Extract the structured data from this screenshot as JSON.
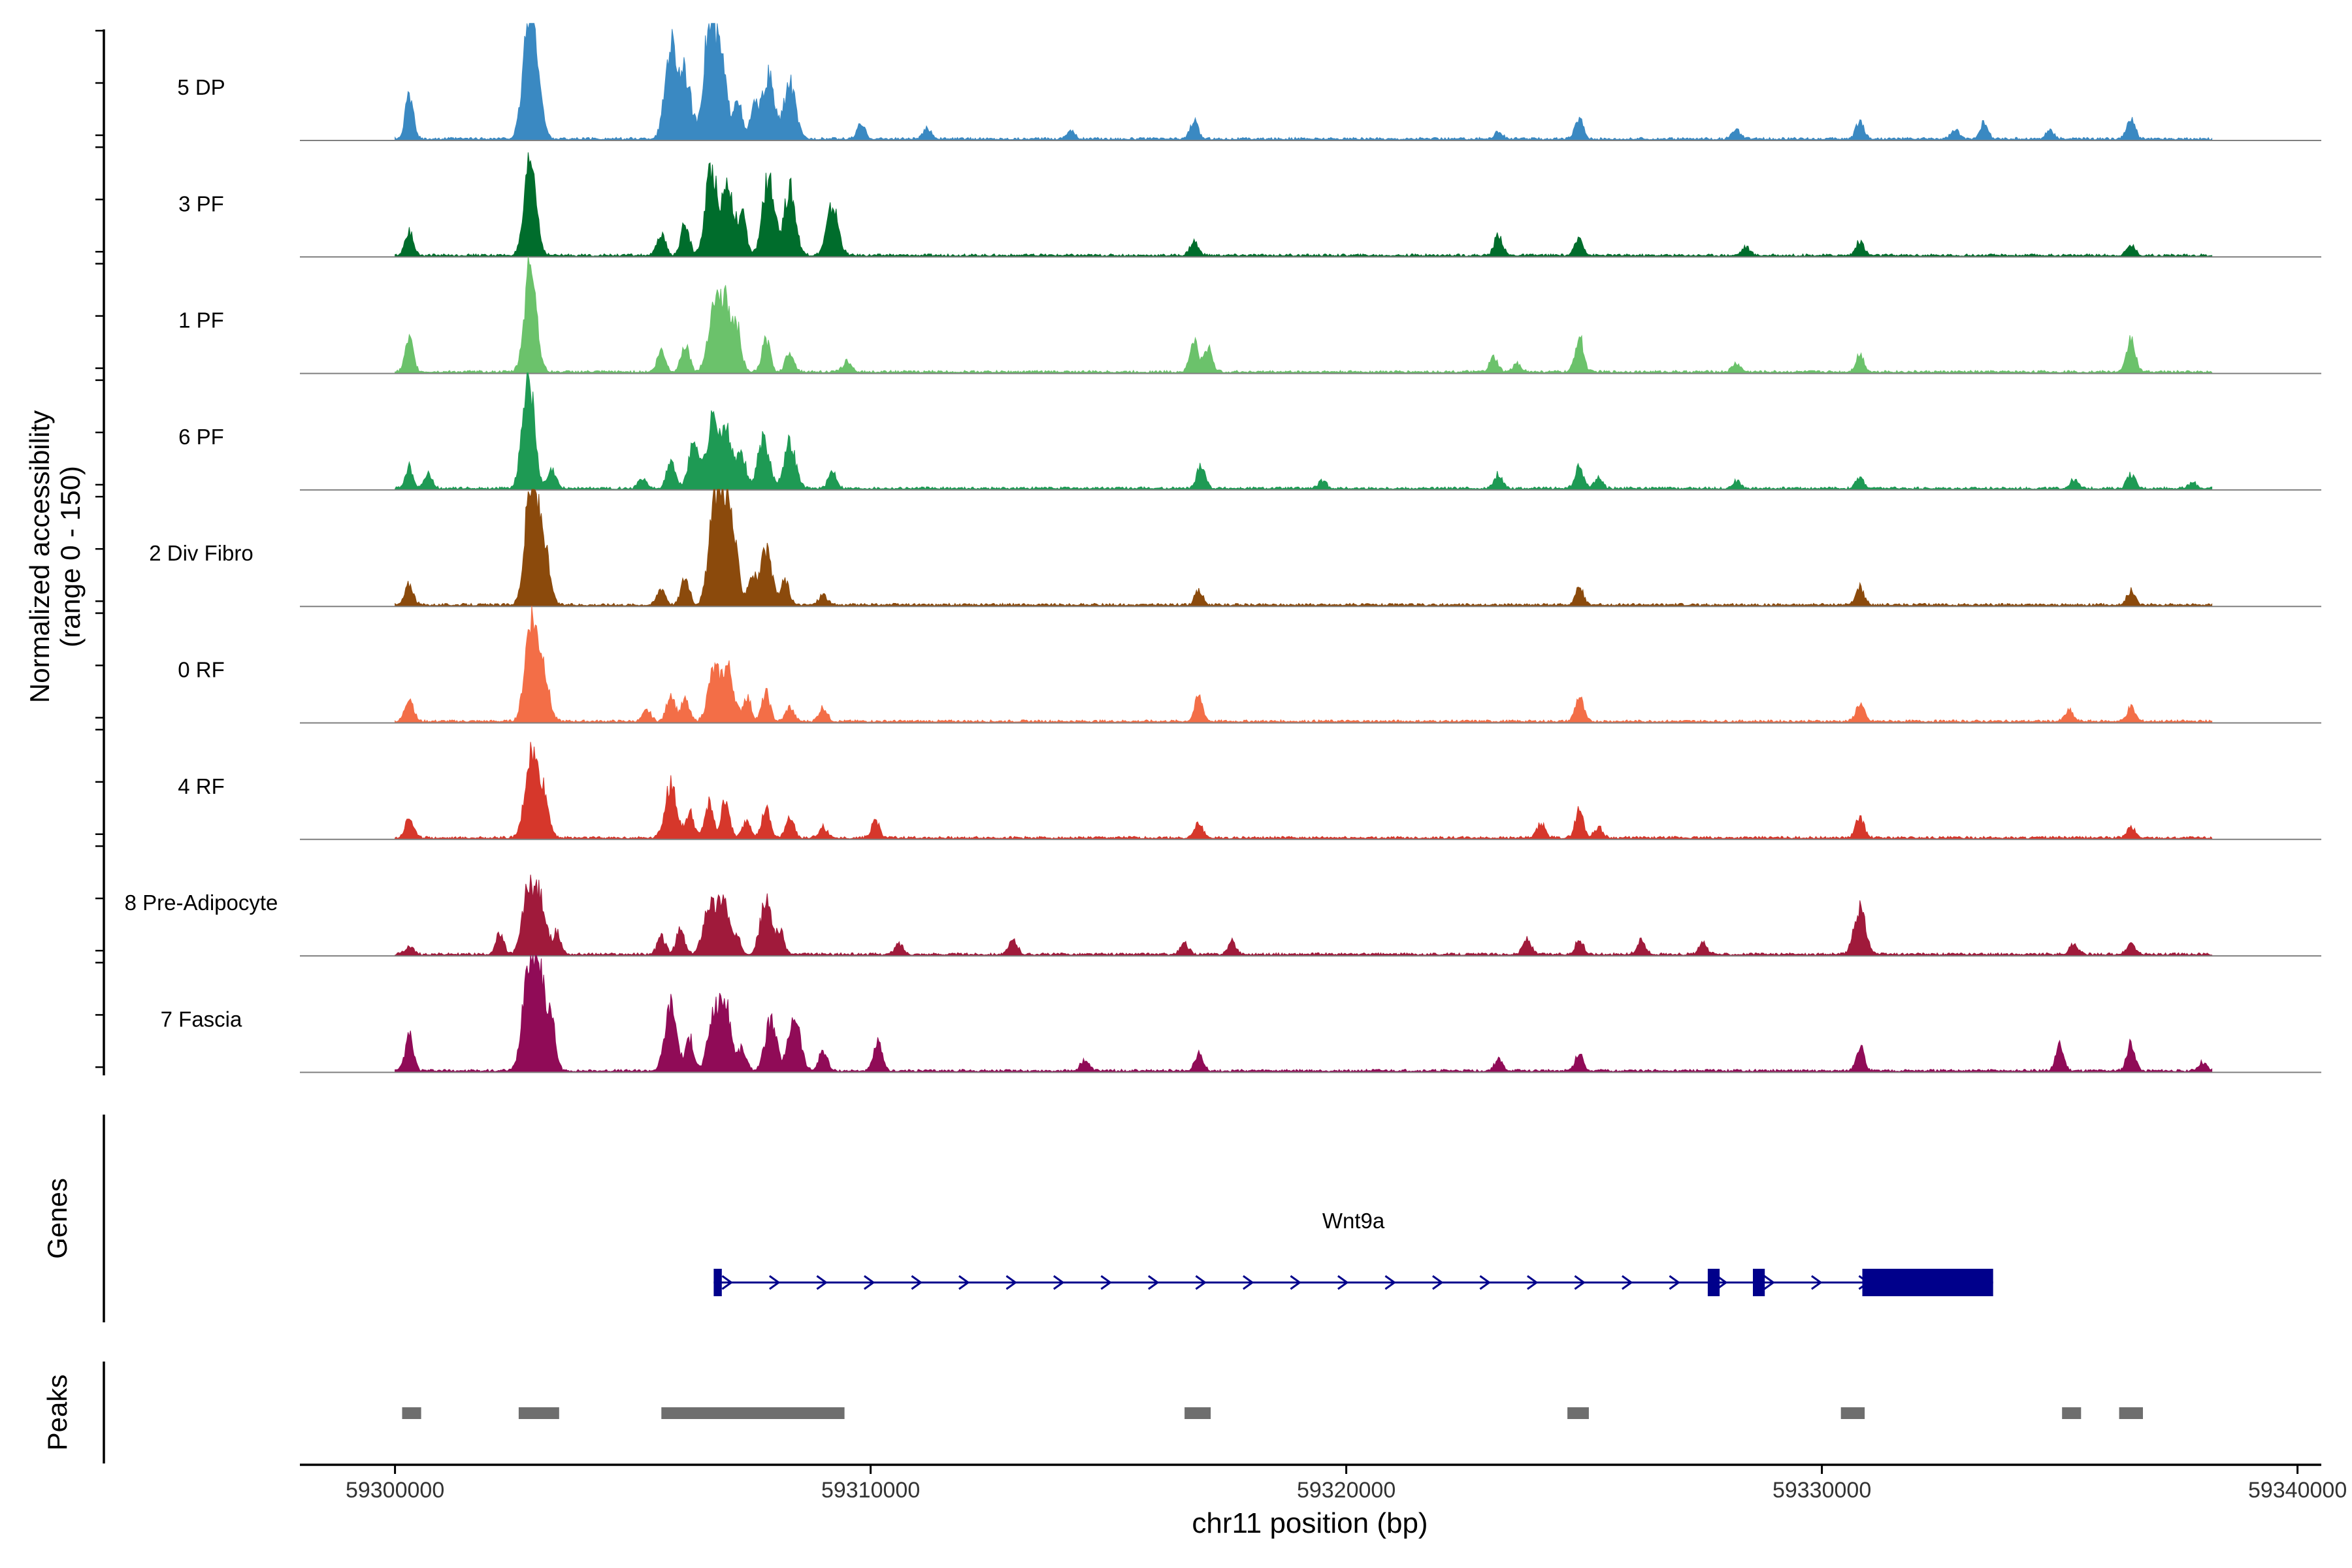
{
  "chart_data": {
    "type": "area",
    "title": "",
    "ylabel_line1": "Normalized accessibility",
    "ylabel_line2": "(range 0 - 150)",
    "y_range": [
      0,
      150
    ],
    "xlabel": "chr11 position (bp)",
    "xlim": [
      59298000,
      59340500
    ],
    "x_ticks": [
      59300000,
      59310000,
      59320000,
      59330000,
      59340000
    ],
    "x_tick_labels": [
      "59300000",
      "59310000",
      "59320000",
      "59330000",
      "59340000"
    ],
    "signal_range": [
      59300000,
      59338200
    ],
    "tracks": [
      {
        "name": "5 DP",
        "color": "#3A89C2",
        "peaks": [
          [
            59300300,
            60
          ],
          [
            59302800,
            140
          ],
          [
            59302950,
            95
          ],
          [
            59305800,
            135
          ],
          [
            59306100,
            90
          ],
          [
            59306600,
            150
          ],
          [
            59306850,
            110
          ],
          [
            59307200,
            60
          ],
          [
            59307550,
            45
          ],
          [
            59307850,
            90
          ],
          [
            59308300,
            80
          ],
          [
            59309800,
            20
          ],
          [
            59311200,
            15
          ],
          [
            59314200,
            12
          ],
          [
            59316800,
            25
          ],
          [
            59323200,
            10
          ],
          [
            59324900,
            30
          ],
          [
            59328200,
            12
          ],
          [
            59330800,
            25
          ],
          [
            59332800,
            12
          ],
          [
            59333400,
            22
          ],
          [
            59334800,
            12
          ],
          [
            59336500,
            28
          ]
        ]
      },
      {
        "name": "3 PF",
        "color": "#006D2C",
        "peaks": [
          [
            59300300,
            35
          ],
          [
            59302850,
            135
          ],
          [
            59305600,
            30
          ],
          [
            59306100,
            45
          ],
          [
            59306650,
            125
          ],
          [
            59307000,
            100
          ],
          [
            59307300,
            55
          ],
          [
            59307850,
            110
          ],
          [
            59308300,
            95
          ],
          [
            59309200,
            70
          ],
          [
            59316800,
            20
          ],
          [
            59323200,
            30
          ],
          [
            59324900,
            25
          ],
          [
            59328400,
            12
          ],
          [
            59330800,
            20
          ],
          [
            59336500,
            15
          ]
        ]
      },
      {
        "name": "1 PF",
        "color": "#6BC26B",
        "peaks": [
          [
            59300300,
            45
          ],
          [
            59302850,
            160
          ],
          [
            59305600,
            30
          ],
          [
            59306100,
            40
          ],
          [
            59306700,
            90
          ],
          [
            59306950,
            95
          ],
          [
            59307200,
            55
          ],
          [
            59307800,
            45
          ],
          [
            59308300,
            30
          ],
          [
            59309500,
            15
          ],
          [
            59316800,
            45
          ],
          [
            59317100,
            35
          ],
          [
            59323100,
            20
          ],
          [
            59323600,
            12
          ],
          [
            59324900,
            50
          ],
          [
            59328200,
            12
          ],
          [
            59330800,
            25
          ],
          [
            59336500,
            50
          ]
        ]
      },
      {
        "name": "6 PF",
        "color": "#1E9A54",
        "peaks": [
          [
            59300300,
            30
          ],
          [
            59300700,
            20
          ],
          [
            59302800,
            165
          ],
          [
            59303300,
            25
          ],
          [
            59305200,
            15
          ],
          [
            59305800,
            40
          ],
          [
            59306300,
            65
          ],
          [
            59306700,
            100
          ],
          [
            59307000,
            75
          ],
          [
            59307300,
            45
          ],
          [
            59307750,
            70
          ],
          [
            59308300,
            65
          ],
          [
            59309200,
            25
          ],
          [
            59316950,
            35
          ],
          [
            59319500,
            10
          ],
          [
            59323200,
            20
          ],
          [
            59324900,
            30
          ],
          [
            59325300,
            15
          ],
          [
            59328200,
            10
          ],
          [
            59330800,
            15
          ],
          [
            59335300,
            12
          ],
          [
            59336500,
            20
          ],
          [
            59337800,
            8
          ]
        ]
      },
      {
        "name": "2 Div Fibro",
        "color": "#8B4A0C",
        "peaks": [
          [
            59300300,
            30
          ],
          [
            59302850,
            165
          ],
          [
            59303100,
            100
          ],
          [
            59305600,
            25
          ],
          [
            59306100,
            40
          ],
          [
            59306700,
            115
          ],
          [
            59306900,
            130
          ],
          [
            59307100,
            85
          ],
          [
            59307500,
            40
          ],
          [
            59307800,
            75
          ],
          [
            59308200,
            35
          ],
          [
            59309000,
            15
          ],
          [
            59316900,
            20
          ],
          [
            59324900,
            25
          ],
          [
            59330800,
            25
          ],
          [
            59336500,
            20
          ]
        ]
      },
      {
        "name": "0 RF",
        "color": "#F36E47",
        "peaks": [
          [
            59300300,
            35
          ],
          [
            59302850,
            140
          ],
          [
            59303100,
            80
          ],
          [
            59305300,
            15
          ],
          [
            59305800,
            40
          ],
          [
            59306100,
            30
          ],
          [
            59306700,
            70
          ],
          [
            59307000,
            75
          ],
          [
            59307400,
            35
          ],
          [
            59307800,
            40
          ],
          [
            59308300,
            20
          ],
          [
            59309000,
            20
          ],
          [
            59316900,
            35
          ],
          [
            59324900,
            35
          ],
          [
            59330800,
            25
          ],
          [
            59335200,
            15
          ],
          [
            59336500,
            20
          ]
        ]
      },
      {
        "name": "4 RF",
        "color": "#D6372B",
        "peaks": [
          [
            59300300,
            30
          ],
          [
            59302850,
            110
          ],
          [
            59303100,
            65
          ],
          [
            59305800,
            75
          ],
          [
            59306200,
            35
          ],
          [
            59306600,
            50
          ],
          [
            59306950,
            55
          ],
          [
            59307400,
            25
          ],
          [
            59307800,
            40
          ],
          [
            59308300,
            30
          ],
          [
            59309000,
            15
          ],
          [
            59310100,
            25
          ],
          [
            59316900,
            20
          ],
          [
            59324100,
            20
          ],
          [
            59324900,
            40
          ],
          [
            59325300,
            15
          ],
          [
            59330800,
            30
          ],
          [
            59336500,
            15
          ]
        ]
      },
      {
        "name": "8 Pre-Adipocyte",
        "color": "#A01A3B",
        "peaks": [
          [
            59300300,
            12
          ],
          [
            59302200,
            28
          ],
          [
            59302800,
            90
          ],
          [
            59303050,
            75
          ],
          [
            59303400,
            30
          ],
          [
            59305600,
            25
          ],
          [
            59306000,
            35
          ],
          [
            59306600,
            70
          ],
          [
            59306900,
            80
          ],
          [
            59307200,
            20
          ],
          [
            59307800,
            75
          ],
          [
            59308100,
            30
          ],
          [
            59310600,
            15
          ],
          [
            59313000,
            20
          ],
          [
            59316600,
            15
          ],
          [
            59317600,
            18
          ],
          [
            59323800,
            22
          ],
          [
            59324900,
            20
          ],
          [
            59326200,
            20
          ],
          [
            59327500,
            15
          ],
          [
            59330800,
            65
          ],
          [
            59335300,
            15
          ],
          [
            59336500,
            15
          ]
        ]
      },
      {
        "name": "7 Fascia",
        "color": "#900B57",
        "peaks": [
          [
            59300300,
            50
          ],
          [
            59302800,
            145
          ],
          [
            59303050,
            140
          ],
          [
            59303300,
            60
          ],
          [
            59305800,
            95
          ],
          [
            59306200,
            45
          ],
          [
            59306700,
            75
          ],
          [
            59306950,
            90
          ],
          [
            59307300,
            30
          ],
          [
            59307900,
            70
          ],
          [
            59308400,
            80
          ],
          [
            59309000,
            30
          ],
          [
            59310150,
            40
          ],
          [
            59314500,
            15
          ],
          [
            59316900,
            25
          ],
          [
            59323200,
            15
          ],
          [
            59324900,
            25
          ],
          [
            59330800,
            35
          ],
          [
            59335000,
            35
          ],
          [
            59336500,
            40
          ],
          [
            59338000,
            12
          ]
        ]
      }
    ],
    "genes_label": "Genes",
    "gene": {
      "name": "Wnt9a",
      "start": 59306700,
      "end": 59333600,
      "strand": "+",
      "exons": [
        [
          59306700,
          59306870
        ],
        [
          59327600,
          59327850
        ],
        [
          59328550,
          59328800
        ],
        [
          59330850,
          59333600
        ]
      ]
    },
    "peaks_label": "Peaks",
    "peak_regions": [
      [
        59300150,
        59300550
      ],
      [
        59302600,
        59303450
      ],
      [
        59305600,
        59309450
      ],
      [
        59316600,
        59317150
      ],
      [
        59324650,
        59325100
      ],
      [
        59330400,
        59330900
      ],
      [
        59335050,
        59335450
      ],
      [
        59336250,
        59336750
      ]
    ]
  }
}
